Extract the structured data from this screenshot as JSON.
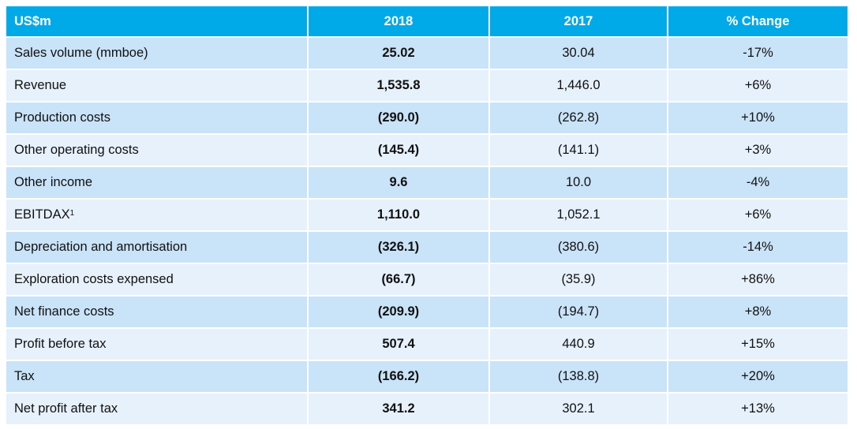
{
  "columns": [
    "US$m",
    "2018",
    "2017",
    "% Change"
  ],
  "rows": [
    {
      "label": "Sales volume (mmboe)",
      "sup": "",
      "y2018": "25.02",
      "y2017": "30.04",
      "change": "-17%"
    },
    {
      "label": "Revenue",
      "sup": "",
      "y2018": "1,535.8",
      "y2017": "1,446.0",
      "change": "+6%"
    },
    {
      "label": "Production costs",
      "sup": "",
      "y2018": "(290.0)",
      "y2017": "(262.8)",
      "change": "+10%"
    },
    {
      "label": "Other operating costs",
      "sup": "",
      "y2018": "(145.4)",
      "y2017": "(141.1)",
      "change": "+3%"
    },
    {
      "label": "Other income",
      "sup": "",
      "y2018": "9.6",
      "y2017": "10.0",
      "change": "-4%"
    },
    {
      "label": "EBITDAX",
      "sup": "1",
      "y2018": "1,110.0",
      "y2017": "1,052.1",
      "change": "+6%"
    },
    {
      "label": "Depreciation and amortisation",
      "sup": "",
      "y2018": "(326.1)",
      "y2017": "(380.6)",
      "change": "-14%"
    },
    {
      "label": "Exploration costs expensed",
      "sup": "",
      "y2018": "(66.7)",
      "y2017": "(35.9)",
      "change": "+86%"
    },
    {
      "label": "Net finance costs",
      "sup": "",
      "y2018": "(209.9)",
      "y2017": "(194.7)",
      "change": "+8%"
    },
    {
      "label": "Profit before tax",
      "sup": "",
      "y2018": "507.4",
      "y2017": "440.9",
      "change": "+15%"
    },
    {
      "label": "Tax",
      "sup": "",
      "y2018": "(166.2)",
      "y2017": "(138.8)",
      "change": "+20%"
    },
    {
      "label": "Net profit after tax",
      "sup": "",
      "y2018": "341.2",
      "y2017": "302.1",
      "change": "+13%"
    }
  ],
  "colors": {
    "header_bg": "#00a9e8",
    "row_odd": "#c9e3f8",
    "row_even": "#e6f1fb"
  }
}
